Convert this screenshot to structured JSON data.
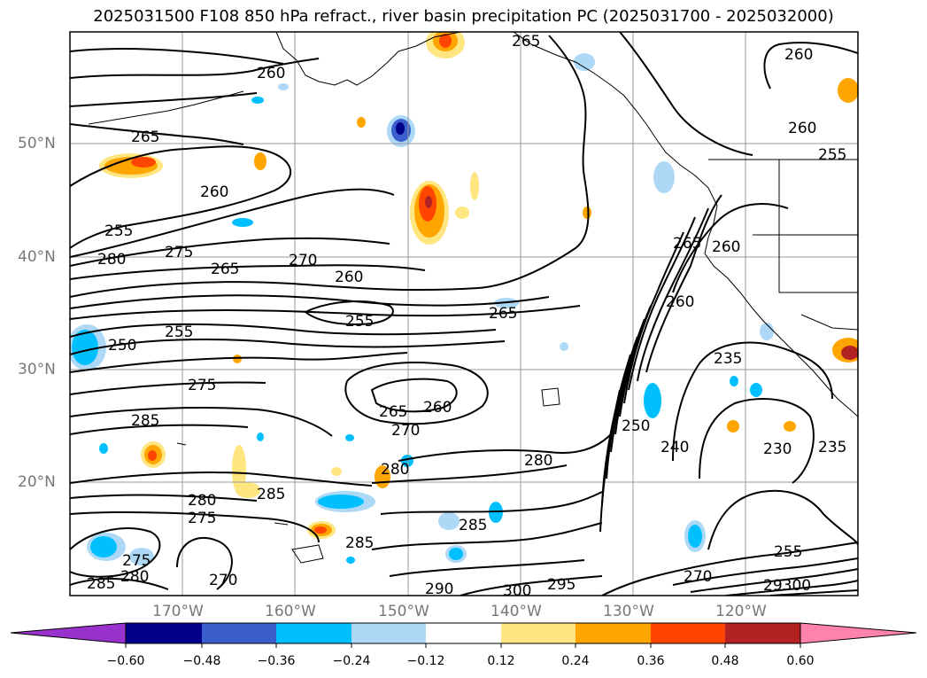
{
  "title": "2025031500 F108 850 hPa refract., river basin precipitation PC (2025031700 - 2025032000)",
  "lat_labels": [
    "50°N",
    "40°N",
    "30°N",
    "20°N"
  ],
  "lon_labels": [
    "170°W",
    "160°W",
    "150°W",
    "140°W",
    "130°W",
    "120°W"
  ],
  "colorbar": {
    "ticks": [
      "−0.60",
      "−0.48",
      "−0.36",
      "−0.24",
      "−0.12",
      "0.12",
      "0.24",
      "0.36",
      "0.48",
      "0.60"
    ],
    "colors": [
      "#9932cc",
      "#00008b",
      "#3a5fcd",
      "#00bfff",
      "#add8f6",
      "#ffffff",
      "#ffe680",
      "#ffa500",
      "#ff4500",
      "#b22222",
      "#ff82ab"
    ]
  },
  "contour_labels": [
    "265",
    "260",
    "260",
    "255",
    "265",
    "260",
    "260",
    "255",
    "275",
    "280",
    "265",
    "270",
    "260",
    "255",
    "265",
    "250",
    "255",
    "275",
    "265",
    "260",
    "270",
    "285",
    "280",
    "280",
    "285",
    "280",
    "275",
    "285",
    "275",
    "280",
    "270",
    "285",
    "285",
    "290",
    "300",
    "295",
    "270",
    "255",
    "29300",
    "265",
    "260",
    "260",
    "250",
    "240",
    "235",
    "230",
    "235"
  ],
  "icons": {
    "colorbar_left": "triangle-left",
    "colorbar_right": "triangle-right"
  }
}
